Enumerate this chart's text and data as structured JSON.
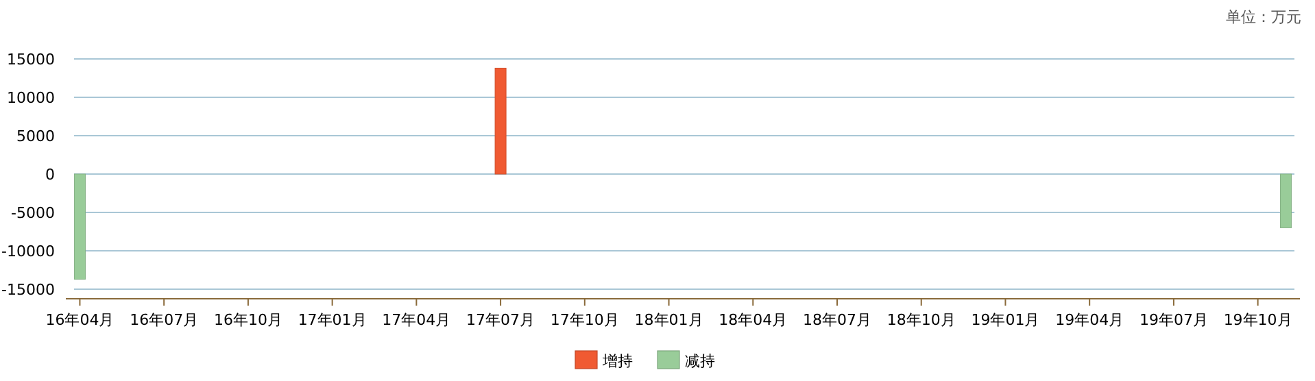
{
  "chart_data": {
    "type": "bar",
    "annotations": [
      "单位：万元"
    ],
    "categories": [
      "16年04月",
      null,
      null,
      "16年07月",
      null,
      null,
      "16年10月",
      null,
      null,
      "17年01月",
      null,
      null,
      "17年04月",
      null,
      null,
      "17年07月",
      null,
      null,
      "17年10月",
      null,
      null,
      "18年01月",
      null,
      null,
      "18年04月",
      null,
      null,
      "18年07月",
      null,
      null,
      "18年10月",
      null,
      null,
      "19年01月",
      null,
      null,
      "19年04月",
      null,
      null,
      "19年07月",
      null,
      null,
      "19年10月",
      null
    ],
    "ylim": [
      -16250,
      15000
    ],
    "yticks": [
      -15000,
      -10000,
      -5000,
      0,
      5000,
      10000,
      15000
    ],
    "grid": "y",
    "legend": "bottom",
    "series": [
      {
        "name": "增持",
        "color": "#f05a32",
        "values": [
          null,
          null,
          null,
          null,
          null,
          null,
          null,
          null,
          null,
          null,
          null,
          null,
          null,
          null,
          null,
          13800,
          null,
          null,
          null,
          null,
          null,
          null,
          null,
          null,
          null,
          null,
          null,
          null,
          null,
          null,
          null,
          null,
          null,
          null,
          null,
          null,
          null,
          null,
          null,
          null,
          null,
          null,
          null,
          null
        ]
      },
      {
        "name": "减持",
        "color": "#99cc99",
        "values": [
          -13700,
          null,
          null,
          null,
          null,
          null,
          null,
          null,
          null,
          null,
          null,
          null,
          null,
          null,
          null,
          null,
          null,
          null,
          null,
          null,
          null,
          null,
          null,
          null,
          null,
          null,
          null,
          null,
          null,
          null,
          null,
          null,
          null,
          null,
          null,
          null,
          null,
          null,
          null,
          null,
          null,
          null,
          null,
          -7000
        ]
      }
    ]
  }
}
